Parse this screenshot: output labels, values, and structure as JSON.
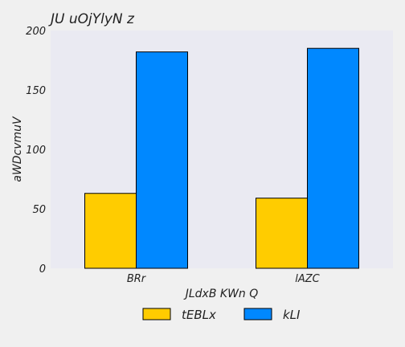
{
  "chart_data": {
    "type": "bar",
    "title": "JU uOjYlyN z",
    "xlabel": "JLdxB KWn Q",
    "ylabel": "aWDcvmuV",
    "categories": [
      "BRr",
      "lAZC"
    ],
    "series": [
      {
        "name": "tEBLx",
        "values": [
          63,
          59
        ],
        "color": "#ffcc00"
      },
      {
        "name": "kLI",
        "values": [
          182,
          185
        ],
        "color": "#0088ff"
      }
    ],
    "ylim": [
      0,
      200
    ],
    "yticks": [
      0,
      50,
      100,
      150,
      200
    ],
    "grid": false,
    "legend": "bottom-center",
    "plot_background": "#eaeaf2",
    "page_background": "#f0f0f0"
  }
}
